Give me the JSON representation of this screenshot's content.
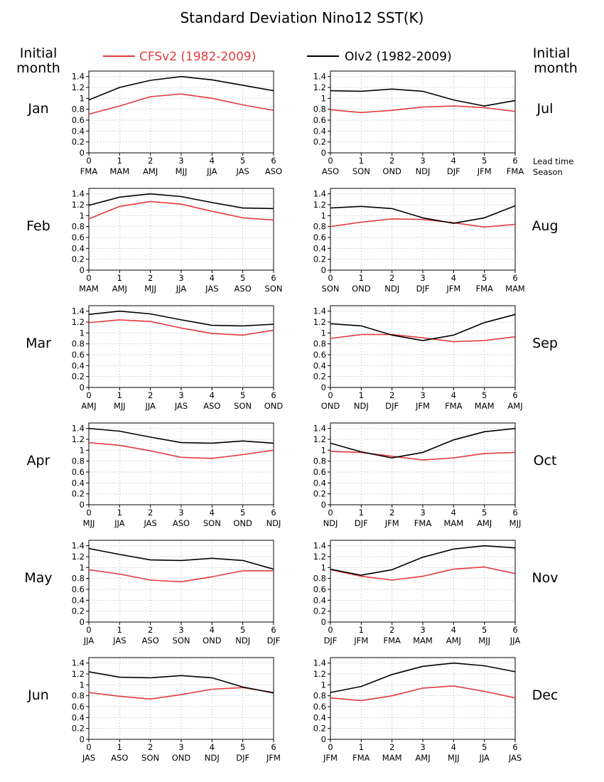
{
  "title": "Standard Deviation Nino12 SST(K)",
  "left_header": [
    "Initial",
    "month"
  ],
  "right_header": [
    "Initial",
    "month"
  ],
  "lead_label": [
    "Lead time",
    "Season"
  ],
  "legend": [
    {
      "label": "CFSv2 (1982-2009)",
      "color": "#e33b3b"
    },
    {
      "label": "OIv2 (1982-2009)",
      "color": "#000000"
    }
  ],
  "chart_data": {
    "type": "line",
    "x": [
      0,
      1,
      2,
      3,
      4,
      5,
      6
    ],
    "ylim": [
      0,
      1.5
    ],
    "yticks": [
      "0",
      "0.2",
      "0.4",
      "0.6",
      "0.8",
      "1",
      "1.2",
      "1.4"
    ],
    "xlim": [
      0,
      6
    ],
    "grid": true,
    "legend_position": "top",
    "panels": [
      {
        "month": "Jan",
        "seasons": [
          "FMA",
          "MAM",
          "AMJ",
          "MJJ",
          "JJA",
          "JAS",
          "ASO"
        ],
        "series": [
          {
            "name": "CFSv2 (1982-2009)",
            "values": [
              0.71,
              0.86,
              1.03,
              1.08,
              1.0,
              0.88,
              0.78
            ]
          },
          {
            "name": "OIv2 (1982-2009)",
            "values": [
              0.97,
              1.2,
              1.33,
              1.4,
              1.34,
              1.24,
              1.14
            ]
          }
        ]
      },
      {
        "month": "Jul",
        "seasons": [
          "ASO",
          "SON",
          "OND",
          "NDJ",
          "DJF",
          "JFM",
          "FMA"
        ],
        "series": [
          {
            "name": "CFSv2 (1982-2009)",
            "values": [
              0.79,
              0.74,
              0.78,
              0.84,
              0.86,
              0.83,
              0.76
            ]
          },
          {
            "name": "OIv2 (1982-2009)",
            "values": [
              1.14,
              1.13,
              1.17,
              1.13,
              0.97,
              0.86,
              0.96
            ]
          }
        ]
      },
      {
        "month": "Feb",
        "seasons": [
          "MAM",
          "AMJ",
          "MJJ",
          "JJA",
          "JAS",
          "ASO",
          "SON"
        ],
        "series": [
          {
            "name": "CFSv2 (1982-2009)",
            "values": [
              0.94,
              1.17,
              1.26,
              1.21,
              1.08,
              0.96,
              0.92
            ]
          },
          {
            "name": "OIv2 (1982-2009)",
            "values": [
              1.19,
              1.34,
              1.4,
              1.35,
              1.24,
              1.14,
              1.13
            ]
          }
        ]
      },
      {
        "month": "Aug",
        "seasons": [
          "SON",
          "OND",
          "NDJ",
          "DJF",
          "JFM",
          "FMA",
          "MAM"
        ],
        "series": [
          {
            "name": "CFSv2 (1982-2009)",
            "values": [
              0.8,
              0.88,
              0.94,
              0.93,
              0.87,
              0.79,
              0.84
            ]
          },
          {
            "name": "OIv2 (1982-2009)",
            "values": [
              1.14,
              1.17,
              1.13,
              0.96,
              0.86,
              0.96,
              1.18
            ]
          }
        ]
      },
      {
        "month": "Mar",
        "seasons": [
          "AMJ",
          "MJJ",
          "JJA",
          "JAS",
          "ASO",
          "SON",
          "OND"
        ],
        "series": [
          {
            "name": "CFSv2 (1982-2009)",
            "values": [
              1.19,
              1.24,
              1.21,
              1.09,
              0.99,
              0.96,
              1.05
            ]
          },
          {
            "name": "OIv2 (1982-2009)",
            "values": [
              1.34,
              1.4,
              1.35,
              1.24,
              1.14,
              1.13,
              1.16
            ]
          }
        ]
      },
      {
        "month": "Sep",
        "seasons": [
          "OND",
          "NDJ",
          "DJF",
          "JFM",
          "FMA",
          "MAM",
          "AMJ"
        ],
        "series": [
          {
            "name": "CFSv2 (1982-2009)",
            "values": [
              0.9,
              0.97,
              0.97,
              0.91,
              0.84,
              0.86,
              0.93
            ]
          },
          {
            "name": "OIv2 (1982-2009)",
            "values": [
              1.17,
              1.13,
              0.96,
              0.86,
              0.96,
              1.19,
              1.34
            ]
          }
        ]
      },
      {
        "month": "Apr",
        "seasons": [
          "MJJ",
          "JJA",
          "JAS",
          "ASO",
          "SON",
          "OND",
          "NDJ"
        ],
        "series": [
          {
            "name": "CFSv2 (1982-2009)",
            "values": [
              1.14,
              1.09,
              0.99,
              0.87,
              0.85,
              0.92,
              1.0
            ]
          },
          {
            "name": "OIv2 (1982-2009)",
            "values": [
              1.4,
              1.35,
              1.24,
              1.14,
              1.13,
              1.17,
              1.13
            ]
          }
        ]
      },
      {
        "month": "Oct",
        "seasons": [
          "NDJ",
          "DJF",
          "JFM",
          "FMA",
          "MAM",
          "AMJ",
          "MJJ"
        ],
        "series": [
          {
            "name": "CFSv2 (1982-2009)",
            "values": [
              0.98,
              0.96,
              0.89,
              0.82,
              0.86,
              0.94,
              0.96
            ]
          },
          {
            "name": "OIv2 (1982-2009)",
            "values": [
              1.13,
              0.97,
              0.86,
              0.96,
              1.19,
              1.34,
              1.4
            ]
          }
        ]
      },
      {
        "month": "May",
        "seasons": [
          "JJA",
          "JAS",
          "ASO",
          "SON",
          "OND",
          "NDJ",
          "DJF"
        ],
        "series": [
          {
            "name": "CFSv2 (1982-2009)",
            "values": [
              0.96,
              0.88,
              0.77,
              0.74,
              0.83,
              0.94,
              0.94
            ]
          },
          {
            "name": "OIv2 (1982-2009)",
            "values": [
              1.35,
              1.24,
              1.14,
              1.13,
              1.17,
              1.13,
              0.97
            ]
          }
        ]
      },
      {
        "month": "Nov",
        "seasons": [
          "DJF",
          "JFM",
          "FMA",
          "MAM",
          "AMJ",
          "MJJ",
          "JJA"
        ],
        "series": [
          {
            "name": "CFSv2 (1982-2009)",
            "values": [
              0.96,
              0.84,
              0.77,
              0.84,
              0.97,
              1.01,
              0.89
            ]
          },
          {
            "name": "OIv2 (1982-2009)",
            "values": [
              0.97,
              0.86,
              0.96,
              1.19,
              1.34,
              1.4,
              1.36
            ]
          }
        ]
      },
      {
        "month": "Jun",
        "seasons": [
          "JAS",
          "ASO",
          "SON",
          "OND",
          "NDJ",
          "DJF",
          "JFM"
        ],
        "series": [
          {
            "name": "CFSv2 (1982-2009)",
            "values": [
              0.86,
              0.79,
              0.74,
              0.82,
              0.92,
              0.95,
              0.86
            ]
          },
          {
            "name": "OIv2 (1982-2009)",
            "values": [
              1.24,
              1.14,
              1.13,
              1.17,
              1.13,
              0.96,
              0.85
            ]
          }
        ]
      },
      {
        "month": "Dec",
        "seasons": [
          "JFM",
          "FMA",
          "MAM",
          "AMJ",
          "MJJ",
          "JJA",
          "JAS"
        ],
        "series": [
          {
            "name": "CFSv2 (1982-2009)",
            "values": [
              0.76,
              0.71,
              0.8,
              0.94,
              0.98,
              0.88,
              0.76
            ]
          },
          {
            "name": "OIv2 (1982-2009)",
            "values": [
              0.86,
              0.97,
              1.19,
              1.34,
              1.4,
              1.35,
              1.24
            ]
          }
        ]
      }
    ]
  }
}
